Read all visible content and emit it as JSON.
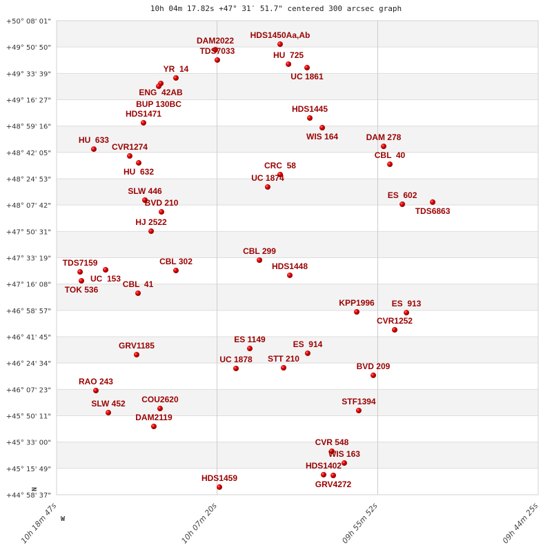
{
  "title": "10h 04m 17.82s +47° 31′ 51.7\" centered 300 arcsec graph",
  "chart_data": {
    "type": "scatter",
    "title": "10h 04m 17.82s +47° 31′ 51.7\" centered 300 arcsec graph",
    "xlabel": "",
    "ylabel": "",
    "x_units": "RA (hours)",
    "y_units": "Dec (degrees)",
    "xlim": [
      10.31306,
      9.74028
    ],
    "ylim": [
      44.97694,
      50.13361
    ],
    "x_reversed": true,
    "grid": true,
    "horizontal_bands": "alternating grey/white",
    "x_ticks": [
      {
        "value": 10.31306,
        "label": "10h 18m 47s"
      },
      {
        "value": 10.12222,
        "label": "10h 07m 20s"
      },
      {
        "value": 9.93111,
        "label": "09h 55m 52s"
      },
      {
        "value": 9.74028,
        "label": "09h 44m 25s"
      }
    ],
    "y_ticks": [
      "+50° 08' 01\"",
      "+49° 50' 50\"",
      "+49° 33' 39\"",
      "+49° 16' 27\"",
      "+48° 59' 16\"",
      "+48° 42' 05\"",
      "+48° 24' 53\"",
      "+48° 07' 42\"",
      "+47° 50' 31\"",
      "+47° 33' 19\"",
      "+47° 16' 08\"",
      "+46° 58' 57\"",
      "+46° 41' 45\"",
      "+46° 24' 34\"",
      "+46° 07' 23\"",
      "+45° 50' 11\"",
      "+45° 33' 00\"",
      "+45° 15' 49\"",
      "+44° 58' 37\""
    ],
    "direction_markers": {
      "north": "N",
      "west": "W"
    },
    "point_color": "#dd0000",
    "label_color": "#990000",
    "points": [
      {
        "name": "HDS1450Aa,Ab",
        "ra": 10.0472,
        "dec": 49.878
      },
      {
        "name": "DAM2022",
        "ra": 10.1243,
        "dec": 49.818
      },
      {
        "name": "TDS7033",
        "ra": 10.1219,
        "dec": 49.706
      },
      {
        "name": "HU  725",
        "ra": 10.0373,
        "dec": 49.661
      },
      {
        "name": "UC 1861",
        "ra": 10.0152,
        "dec": 49.623
      },
      {
        "name": "YR  14",
        "ra": 10.1711,
        "dec": 49.511
      },
      {
        "name": "ENG  42AB",
        "ra": 10.1891,
        "dec": 49.451
      },
      {
        "name": "BUP 130BC",
        "ra": 10.1916,
        "dec": 49.421
      },
      {
        "name": "HDS1471",
        "ra": 10.2097,
        "dec": 49.023
      },
      {
        "name": "HDS1445",
        "ra": 10.0119,
        "dec": 49.075
      },
      {
        "name": "WIS 164",
        "ra": 9.9971,
        "dec": 48.97
      },
      {
        "name": "DAM 278",
        "ra": 9.9241,
        "dec": 48.767
      },
      {
        "name": "HU  633",
        "ra": 10.2688,
        "dec": 48.737
      },
      {
        "name": "CVR1274",
        "ra": 10.2261,
        "dec": 48.662
      },
      {
        "name": "HU  632",
        "ra": 10.2154,
        "dec": 48.587
      },
      {
        "name": "CBL  40",
        "ra": 9.9167,
        "dec": 48.572
      },
      {
        "name": "CRC  58",
        "ra": 10.0472,
        "dec": 48.46
      },
      {
        "name": "UC 1874",
        "ra": 10.062,
        "dec": 48.325
      },
      {
        "name": "ES  602",
        "ra": 9.9019,
        "dec": 48.137
      },
      {
        "name": "TDS6863",
        "ra": 9.8658,
        "dec": 48.16
      },
      {
        "name": "SLW 446",
        "ra": 10.208,
        "dec": 48.182
      },
      {
        "name": "BVD 210",
        "ra": 10.1883,
        "dec": 48.054
      },
      {
        "name": "HJ 2522",
        "ra": 10.2006,
        "dec": 47.844
      },
      {
        "name": "CBL 299",
        "ra": 10.0718,
        "dec": 47.529
      },
      {
        "name": "TDS7159",
        "ra": 10.2851,
        "dec": 47.401
      },
      {
        "name": "UC  153",
        "ra": 10.2548,
        "dec": 47.424
      },
      {
        "name": "CBL 302",
        "ra": 10.1711,
        "dec": 47.416
      },
      {
        "name": "TOK 536",
        "ra": 10.2835,
        "dec": 47.304
      },
      {
        "name": "HDS1448",
        "ra": 10.0357,
        "dec": 47.364
      },
      {
        "name": "CBL  41",
        "ra": 10.2162,
        "dec": 47.169
      },
      {
        "name": "KPP1996",
        "ra": 9.9561,
        "dec": 46.966
      },
      {
        "name": "ES  913",
        "ra": 9.897,
        "dec": 46.958
      },
      {
        "name": "CVR1252",
        "ra": 9.911,
        "dec": 46.771
      },
      {
        "name": "ES 1149",
        "ra": 10.0833,
        "dec": 46.568
      },
      {
        "name": "ES  914",
        "ra": 10.0144,
        "dec": 46.516
      },
      {
        "name": "GRV1185",
        "ra": 10.2179,
        "dec": 46.501
      },
      {
        "name": "UC 1878",
        "ra": 10.0997,
        "dec": 46.351
      },
      {
        "name": "STT 210",
        "ra": 10.0431,
        "dec": 46.358
      },
      {
        "name": "BVD 209",
        "ra": 9.9364,
        "dec": 46.276
      },
      {
        "name": "RAO 243",
        "ra": 10.2663,
        "dec": 46.11
      },
      {
        "name": "COU2620",
        "ra": 10.19,
        "dec": 45.915
      },
      {
        "name": "SLW 452",
        "ra": 10.2515,
        "dec": 45.87
      },
      {
        "name": "STF1394",
        "ra": 9.9537,
        "dec": 45.893
      },
      {
        "name": "DAM2119",
        "ra": 10.1974,
        "dec": 45.72
      },
      {
        "name": "CVR 548",
        "ra": 9.9857,
        "dec": 45.45
      },
      {
        "name": "WIS 163",
        "ra": 9.9709,
        "dec": 45.322
      },
      {
        "name": "HDS1402",
        "ra": 9.9955,
        "dec": 45.195
      },
      {
        "name": "GRV4272",
        "ra": 9.984,
        "dec": 45.187
      },
      {
        "name": "HDS1459",
        "ra": 10.1194,
        "dec": 45.06
      }
    ]
  }
}
